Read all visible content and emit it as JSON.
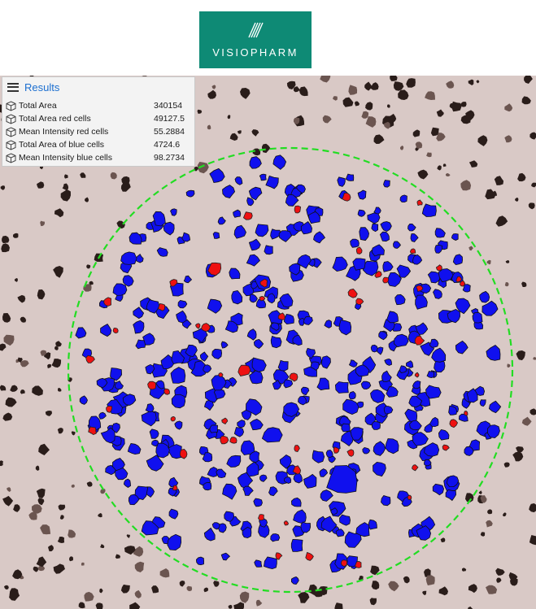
{
  "brand": {
    "logo_text": "VISIOPHARM",
    "logo_color": "#0e8a75",
    "logo_icon": "visiopharm-logo-icon"
  },
  "results_panel": {
    "title": "Results",
    "menu_icon": "hamburger-menu-icon",
    "title_color": "#1c6fd0",
    "rows": [
      {
        "icon": "cube-icon",
        "label": "Total Area",
        "value": "340154"
      },
      {
        "icon": "cube-icon",
        "label": "Total Area red cells",
        "value": "49127.5"
      },
      {
        "icon": "cube-icon",
        "label": "Mean Intensity red cells",
        "value": "55.2884"
      },
      {
        "icon": "cube-icon",
        "label": "Total Area of blue cells",
        "value": "4724.6"
      },
      {
        "icon": "cube-icon",
        "label": "Mean Intensity blue cells",
        "value": "98.2734"
      }
    ]
  },
  "image_view": {
    "background_color": "#d9c9c6",
    "roi_outline_color": "#22dd22",
    "blue_cell_color": "#1010ee",
    "red_cell_color": "#ee1111",
    "stained_nucleus_color": "#2a1d1a"
  }
}
